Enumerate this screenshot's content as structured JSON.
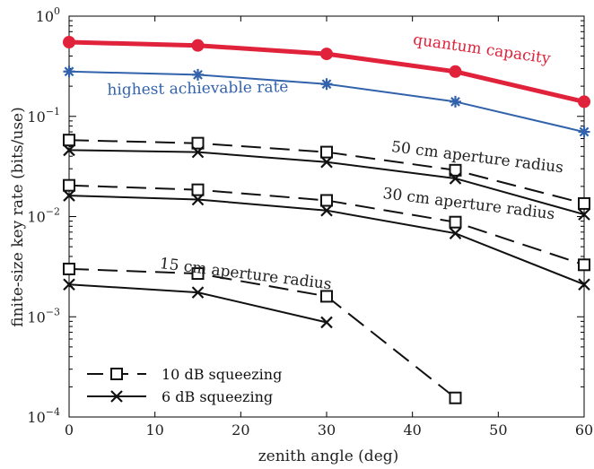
{
  "chart_data": {
    "type": "line",
    "xlabel": "zenith angle (deg)",
    "ylabel": "finite-size key rate (bits/use)",
    "xlim": [
      0,
      60
    ],
    "ylim": [
      0.0001,
      1
    ],
    "yscale": "log",
    "x_ticks": [
      "0",
      "10",
      "20",
      "30",
      "40",
      "50",
      "60"
    ],
    "y_ticks": [
      {
        "base": "10",
        "exp": "0",
        "value": 1
      },
      {
        "base": "10",
        "exp": "−1",
        "value": 0.1
      },
      {
        "base": "10",
        "exp": "−2",
        "value": 0.01
      },
      {
        "base": "10",
        "exp": "−3",
        "value": 0.001
      },
      {
        "base": "10",
        "exp": "−4",
        "value": 0.0001
      }
    ],
    "grid": false,
    "legend_position": "bottom-left",
    "legend": [
      {
        "label": "10 dB squeezing",
        "marker": "square",
        "dash": true
      },
      {
        "label": "6 dB squeezing",
        "marker": "x",
        "dash": false
      }
    ],
    "annotations": [
      {
        "text": "quantum capacity",
        "color": "#e0223b",
        "x": 48,
        "y": 0.42,
        "rotate": 8
      },
      {
        "text": "highest achievable rate",
        "color": "#3262ab",
        "x": 15,
        "y": 0.17,
        "rotate": -1
      },
      {
        "text": "50 cm aperture radius",
        "color": "#222222",
        "x": 47.5,
        "y": 0.035,
        "rotate": 7
      },
      {
        "text": "30 cm aperture radius",
        "color": "#222222",
        "x": 46.5,
        "y": 0.012,
        "rotate": 7
      },
      {
        "text": "15 cm aperture radius",
        "color": "#222222",
        "x": 20.5,
        "y": 0.0024,
        "rotate": 7
      }
    ],
    "series": [
      {
        "x": [
          0,
          15,
          30,
          45,
          60
        ],
        "y": [
          0.55,
          0.51,
          0.42,
          0.28,
          0.14
        ],
        "color": "#e0223b",
        "width": 5,
        "marker": "circle",
        "dash": false
      },
      {
        "x": [
          0,
          15,
          30,
          45,
          60
        ],
        "y": [
          0.28,
          0.26,
          0.21,
          0.14,
          0.07
        ],
        "color": "#3262ab",
        "width": 2,
        "marker": "star",
        "dash": false
      },
      {
        "x": [
          0,
          15,
          30,
          45,
          60
        ],
        "y": [
          0.058,
          0.054,
          0.044,
          0.029,
          0.0135
        ],
        "color": "#111111",
        "width": 2,
        "marker": "square",
        "dash": true
      },
      {
        "x": [
          0,
          15,
          30,
          45,
          60
        ],
        "y": [
          0.046,
          0.044,
          0.035,
          0.024,
          0.0105
        ],
        "color": "#111111",
        "width": 2,
        "marker": "x",
        "dash": false
      },
      {
        "x": [
          0,
          15,
          30,
          45,
          60
        ],
        "y": [
          0.0205,
          0.0185,
          0.0145,
          0.0088,
          0.0033
        ],
        "color": "#111111",
        "width": 2,
        "marker": "square",
        "dash": true
      },
      {
        "x": [
          0,
          15,
          30,
          45,
          60
        ],
        "y": [
          0.0162,
          0.0148,
          0.0115,
          0.0068,
          0.0021
        ],
        "color": "#111111",
        "width": 2,
        "marker": "x",
        "dash": false
      },
      {
        "x": [
          0,
          15,
          30,
          45
        ],
        "y": [
          0.003,
          0.0027,
          0.0016,
          0.000155
        ],
        "color": "#111111",
        "width": 2,
        "marker": "square",
        "dash": true
      },
      {
        "x": [
          0,
          15,
          30
        ],
        "y": [
          0.0021,
          0.00175,
          0.00088
        ],
        "color": "#111111",
        "width": 2,
        "marker": "x",
        "dash": false
      }
    ]
  }
}
